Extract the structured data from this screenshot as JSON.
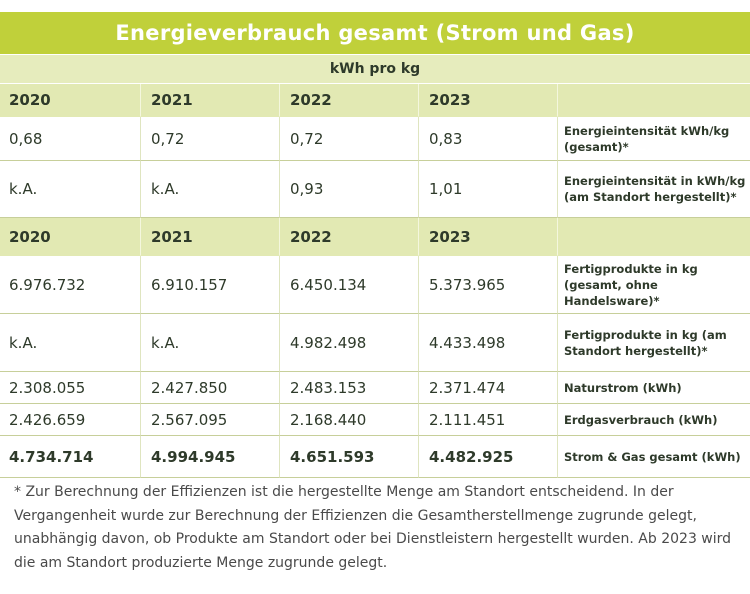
{
  "title": "Energieverbrauch gesamt (Strom und Gas)",
  "unit": "kWh pro kg",
  "years_header_1": [
    "2020",
    "2021",
    "2022",
    "2023",
    ""
  ],
  "intensity_rows": [
    {
      "values": [
        "0,68",
        "0,72",
        "0,72",
        "0,83"
      ],
      "label": "Energieintensität kWh/kg (gesamt)*"
    },
    {
      "values": [
        "k.A.",
        "k.A.",
        "0,93",
        "1,01"
      ],
      "label": "Energieintensität in kWh/kg (am Standort hergestellt)*"
    }
  ],
  "years_header_2": [
    "2020",
    "2021",
    "2022",
    "2023",
    ""
  ],
  "volume_rows": [
    {
      "values": [
        "6.976.732",
        "6.910.157",
        "6.450.134",
        "5.373.965"
      ],
      "label": "Fertigprodukte in kg (gesamt, ohne Handelsware)*"
    },
    {
      "values": [
        "k.A.",
        "k.A.",
        "4.982.498",
        "4.433.498"
      ],
      "label": "Fertigprodukte in kg (am Standort hergestellt)*"
    },
    {
      "values": [
        "2.308.055",
        "2.427.850",
        "2.483.153",
        "2.371.474"
      ],
      "label": "Naturstrom (kWh)"
    },
    {
      "values": [
        "2.426.659",
        "2.567.095",
        "2.168.440",
        "2.111.451"
      ],
      "label": "Erdgasverbrauch (kWh)"
    },
    {
      "values": [
        "4.734.714",
        "4.994.945",
        "4.651.593",
        "4.482.925"
      ],
      "label": "Strom & Gas gesamt (kWh)"
    }
  ],
  "footnote": "* Zur Berechnung der Effizienzen ist die hergestellte Menge am Standort entscheidend. In der Vergangenheit wurde zur Berechnung der Effizienzen die Gesamtherstellmenge zugrunde gelegt, unabhängig davon, ob Produkte am Standort oder bei Dienstleistern hergestellt wurden. Ab 2023 wird die am Standort produzierte Menge zugrunde gelegt."
}
